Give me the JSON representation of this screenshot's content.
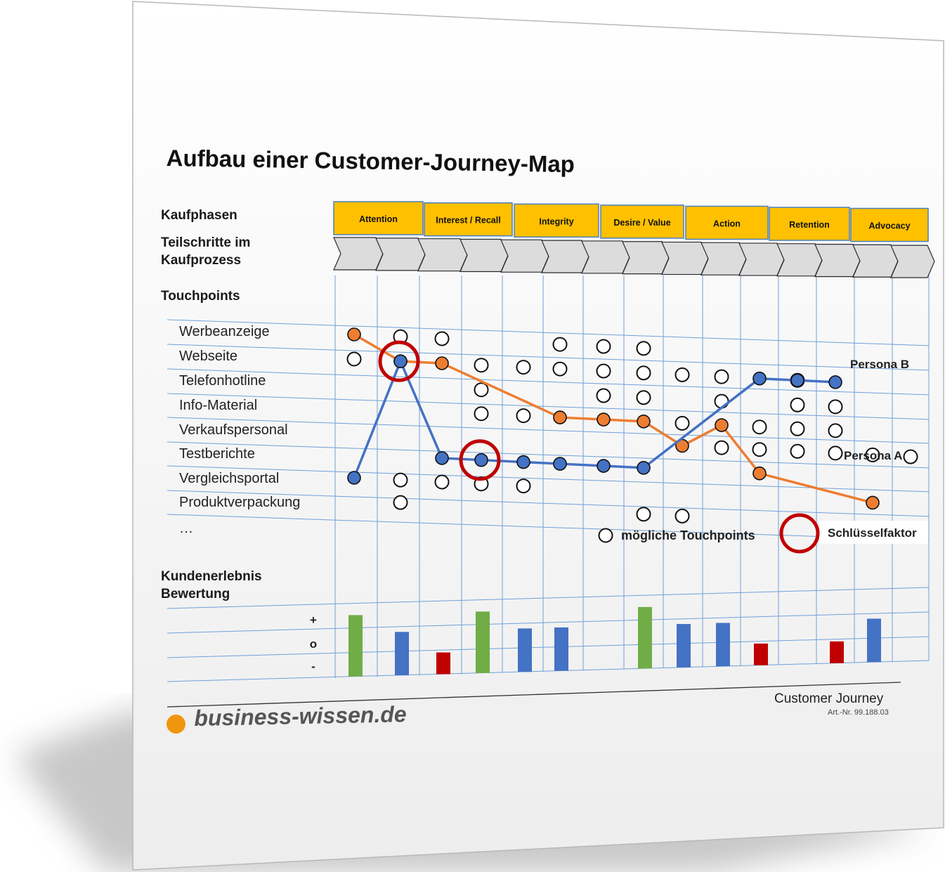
{
  "title": "Aufbau einer Customer-Journey-Map",
  "labels": {
    "kaufphasen": "Kaufphasen",
    "teilschritte": "Teilschritte im Kaufprozess",
    "touchpoints": "Touchpoints",
    "kundenerlebnis": "Kundenerlebnis Bewertung"
  },
  "phases": [
    "Attention",
    "Interest / Recall",
    "Integrity",
    "Desire / Value",
    "Action",
    "Retention",
    "Advocacy"
  ],
  "touchpoints": [
    "Werbeanzeige",
    "Webseite",
    "Telefonhotline",
    "Info-Material",
    "Verkaufspersonal",
    "Testberichte",
    "Vergleichsportal",
    "Produktverpackung",
    "…"
  ],
  "rating_scale": [
    "+",
    "o",
    "-"
  ],
  "legend": {
    "possible": "mögliche Touchpoints",
    "key": "Schlüsselfaktor"
  },
  "personas": {
    "a": {
      "name": "Persona A",
      "color": "#ed7d31"
    },
    "b": {
      "name": "Persona B",
      "color": "#4472c4"
    }
  },
  "colors": {
    "phase_fill": "#ffc000",
    "phase_border": "#4a7fc0",
    "grid": "#6fa0d8",
    "key_ring": "#c00000",
    "rating_positive": "#70ad47",
    "rating_neutral": "#4472c4",
    "rating_negative": "#c00000"
  },
  "footer": {
    "brand": "business-wissen.de",
    "doc_title": "Customer Journey",
    "art_nr": "Art.-Nr. 99.188.03"
  },
  "chart_data": {
    "type": "customer-journey-map",
    "steps": 15,
    "possible_touchpoints": [
      {
        "touchpoint": "Werbeanzeige",
        "steps": [
          2,
          3,
          6,
          7,
          8
        ]
      },
      {
        "touchpoint": "Webseite",
        "steps": [
          1,
          4,
          5,
          6,
          7,
          8,
          9,
          10,
          12
        ]
      },
      {
        "touchpoint": "Telefonhotline",
        "steps": [
          4,
          7,
          8,
          10,
          12,
          13
        ]
      },
      {
        "touchpoint": "Info-Material",
        "steps": [
          4,
          5,
          9,
          11,
          12,
          13
        ]
      },
      {
        "touchpoint": "Verkaufspersonal",
        "steps": [
          10,
          11,
          12,
          13,
          14,
          15
        ]
      },
      {
        "touchpoint": "Testberichte",
        "steps": []
      },
      {
        "touchpoint": "Vergleichsportal",
        "steps": [
          2,
          3,
          4,
          5
        ]
      },
      {
        "touchpoint": "Produktverpackung",
        "steps": [
          2,
          8,
          9
        ]
      }
    ],
    "persona_a_path": [
      {
        "step": 1,
        "touchpoint": "Werbeanzeige"
      },
      {
        "step": 2,
        "touchpoint": "Webseite"
      },
      {
        "step": 3,
        "touchpoint": "Webseite"
      },
      {
        "step": 6,
        "touchpoint": "Info-Material"
      },
      {
        "step": 7,
        "touchpoint": "Info-Material"
      },
      {
        "step": 8,
        "touchpoint": "Info-Material"
      },
      {
        "step": 9,
        "touchpoint": "Verkaufspersonal"
      },
      {
        "step": 10,
        "touchpoint": "Info-Material"
      },
      {
        "step": 11,
        "touchpoint": "Testberichte"
      },
      {
        "step": 14,
        "touchpoint": "Vergleichsportal"
      }
    ],
    "persona_b_path": [
      {
        "step": 1,
        "touchpoint": "Vergleichsportal"
      },
      {
        "step": 2,
        "touchpoint": "Webseite"
      },
      {
        "step": 3,
        "touchpoint": "Testberichte"
      },
      {
        "step": 4,
        "touchpoint": "Testberichte"
      },
      {
        "step": 5,
        "touchpoint": "Testberichte"
      },
      {
        "step": 6,
        "touchpoint": "Testberichte"
      },
      {
        "step": 7,
        "touchpoint": "Testberichte"
      },
      {
        "step": 8,
        "touchpoint": "Testberichte"
      },
      {
        "step": 11,
        "touchpoint": "Webseite"
      },
      {
        "step": 12,
        "touchpoint": "Webseite"
      },
      {
        "step": 13,
        "touchpoint": "Webseite"
      }
    ],
    "key_factors": [
      {
        "step": 2,
        "touchpoint": "Webseite"
      },
      {
        "step": 4,
        "touchpoint": "Testberichte"
      }
    ],
    "ratings": [
      {
        "step": 1,
        "value": 0.85,
        "type": "positive"
      },
      {
        "step": 2,
        "value": 0.6,
        "type": "neutral"
      },
      {
        "step": 3,
        "value": 0.3,
        "type": "negative"
      },
      {
        "step": 4,
        "value": 0.85,
        "type": "positive"
      },
      {
        "step": 5,
        "value": 0.6,
        "type": "neutral"
      },
      {
        "step": 6,
        "value": 0.6,
        "type": "neutral"
      },
      {
        "step": 8,
        "value": 0.85,
        "type": "positive"
      },
      {
        "step": 9,
        "value": 0.6,
        "type": "neutral"
      },
      {
        "step": 10,
        "value": 0.6,
        "type": "neutral"
      },
      {
        "step": 11,
        "value": 0.3,
        "type": "negative"
      },
      {
        "step": 13,
        "value": 0.3,
        "type": "negative"
      },
      {
        "step": 14,
        "value": 0.6,
        "type": "neutral"
      }
    ]
  }
}
